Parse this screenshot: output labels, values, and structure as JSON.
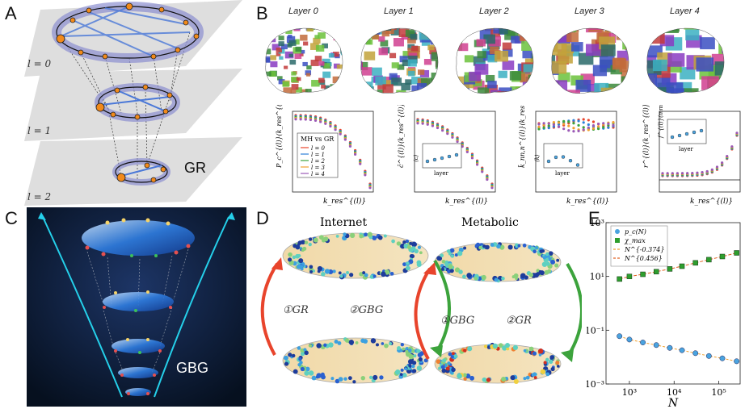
{
  "panels": {
    "a": "A",
    "b": "B",
    "c": "C",
    "d": "D",
    "e": "E"
  },
  "panelA": {
    "layers": [
      "l = 0",
      "l = 1",
      "l = 2"
    ],
    "model": "GR"
  },
  "panelB": {
    "layers": [
      "Layer 0",
      "Layer 1",
      "Layer 2",
      "Layer 3",
      "Layer 4"
    ],
    "legend_title": "MH vs GR",
    "legend_items": [
      "l = 0",
      "l = 1",
      "l = 2",
      "l = 3",
      "l = 4"
    ],
    "ylabels": [
      "P_c^{(l)}(k_res^{(l)})",
      "c̄^{(l)}(k_res^{(l)})",
      "k̄_nn,n^{(l)}(k_res^{(l)})",
      "r^{(l)}(k_res^{(l)})"
    ],
    "xlabel": "k_res^{(l)}",
    "inset_labels": [
      "⟨c⟩",
      "⟨k⟩",
      "f^{(l)}(mm)"
    ],
    "inset_xlabel": "layer"
  },
  "panelC": {
    "model": "GBG"
  },
  "panelD": {
    "titles": [
      "Internet",
      "Metabolic"
    ],
    "internet_arrows": [
      "①GR",
      "②GBG"
    ],
    "metabolic_arrows": [
      "①GBG",
      "②GR"
    ]
  },
  "panelE": {
    "legend": [
      "p_c(N)",
      "χ_max",
      "N^{-0.374}",
      "N^{0.456}"
    ],
    "xlabel": "N",
    "yticks": [
      "10³",
      "10¹",
      "10⁻¹",
      "10⁻³"
    ],
    "xticks": [
      "10³",
      "10⁴",
      "10⁵"
    ]
  },
  "chart_data": [
    {
      "type": "scatter",
      "title": "",
      "xlabel": "N",
      "ylabel": "",
      "series": [
        {
          "name": "p_c(N)",
          "x": [
            600,
            1000,
            2000,
            4000,
            8000,
            15000,
            30000,
            60000,
            120000,
            250000
          ],
          "y": [
            0.06,
            0.045,
            0.035,
            0.028,
            0.022,
            0.018,
            0.014,
            0.011,
            0.009,
            0.007
          ]
        },
        {
          "name": "χ_max",
          "x": [
            600,
            1000,
            2000,
            4000,
            8000,
            15000,
            30000,
            60000,
            120000,
            250000
          ],
          "y": [
            8,
            10,
            12,
            15,
            19,
            24,
            32,
            42,
            55,
            75
          ]
        }
      ],
      "xscale": "log",
      "yscale": "log",
      "ylim": [
        0.001,
        1000
      ],
      "xlim": [
        300,
        300000
      ],
      "colors": [
        "#4aa3df",
        "#2e9e2e",
        "#f0a030",
        "#e06020"
      ]
    }
  ],
  "colors": {
    "orange": "#f28a1a",
    "blue": "#2d5fc4",
    "purple": "#8b8fd0",
    "red": "#e8442c",
    "green": "#3ca33c",
    "teal": "#1fb5c9"
  }
}
